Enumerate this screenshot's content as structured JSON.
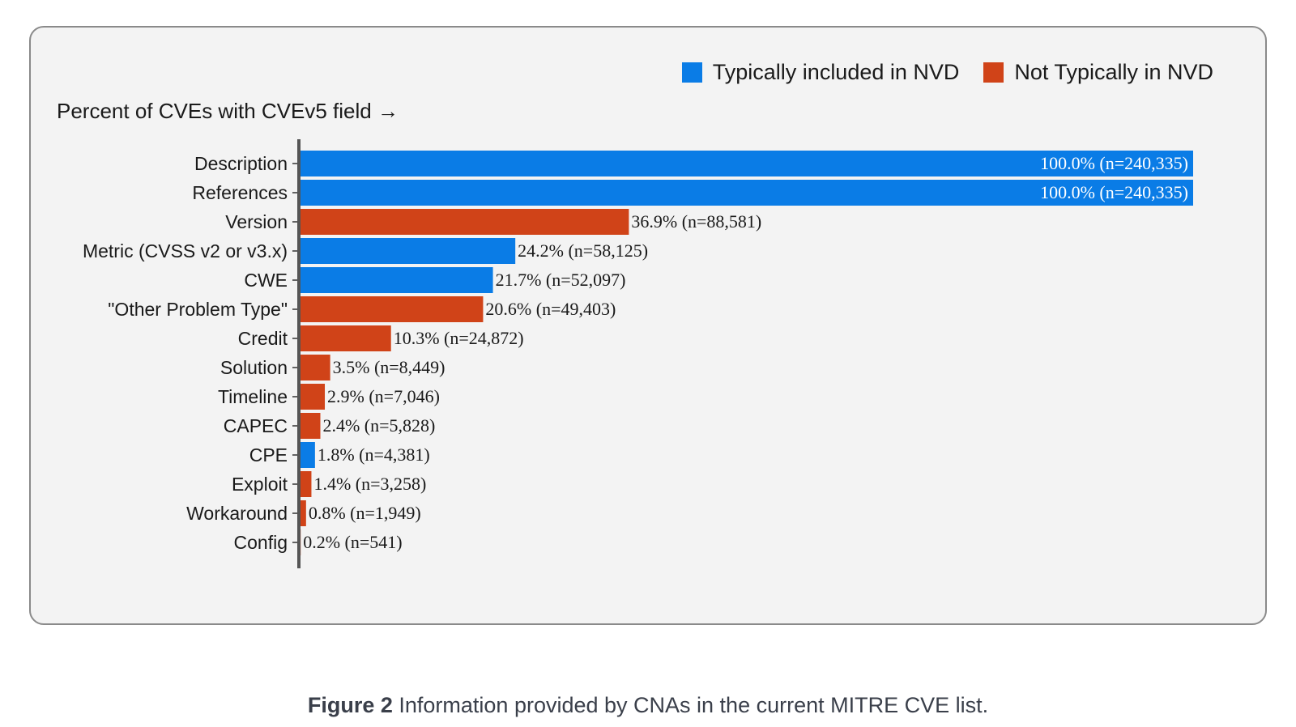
{
  "chart_data": {
    "type": "bar",
    "orientation": "horizontal",
    "title": "Percent of CVEs with CVEv5 field →",
    "xlim": [
      0,
      100
    ],
    "legend": [
      {
        "name": "Typically included in NVD",
        "color": "#0a7ce6"
      },
      {
        "name": "Not Typically in NVD",
        "color": "#d04318"
      }
    ],
    "legend_position": "top-right",
    "bars": [
      {
        "category": "Description",
        "value": 100.0,
        "n": "240,335",
        "label": "100.0% (n=240,335)",
        "group": "Typically included in NVD"
      },
      {
        "category": "References",
        "value": 100.0,
        "n": "240,335",
        "label": "100.0% (n=240,335)",
        "group": "Typically included in NVD"
      },
      {
        "category": "Version",
        "value": 36.9,
        "n": "88,581",
        "label": "36.9% (n=88,581)",
        "group": "Not Typically in NVD"
      },
      {
        "category": "Metric (CVSS v2 or v3.x)",
        "value": 24.2,
        "n": "58,125",
        "label": "24.2% (n=58,125)",
        "group": "Typically included in NVD"
      },
      {
        "category": "CWE",
        "value": 21.7,
        "n": "52,097",
        "label": "21.7% (n=52,097)",
        "group": "Typically included in NVD"
      },
      {
        "category": "\"Other Problem Type\"",
        "value": 20.6,
        "n": "49,403",
        "label": "20.6% (n=49,403)",
        "group": "Not Typically in NVD"
      },
      {
        "category": "Credit",
        "value": 10.3,
        "n": "24,872",
        "label": "10.3% (n=24,872)",
        "group": "Not Typically in NVD"
      },
      {
        "category": "Solution",
        "value": 3.5,
        "n": "8,449",
        "label": "3.5% (n=8,449)",
        "group": "Not Typically in NVD"
      },
      {
        "category": "Timeline",
        "value": 2.9,
        "n": "7,046",
        "label": "2.9% (n=7,046)",
        "group": "Not Typically in NVD"
      },
      {
        "category": "CAPEC",
        "value": 2.4,
        "n": "5,828",
        "label": "2.4% (n=5,828)",
        "group": "Not Typically in NVD"
      },
      {
        "category": "CPE",
        "value": 1.8,
        "n": "4,381",
        "label": "1.8% (n=4,381)",
        "group": "Typically included in NVD"
      },
      {
        "category": "Exploit",
        "value": 1.4,
        "n": "3,258",
        "label": "1.4% (n=3,258)",
        "group": "Not Typically in NVD"
      },
      {
        "category": "Workaround",
        "value": 0.8,
        "n": "1,949",
        "label": "0.8% (n=1,949)",
        "group": "Not Typically in NVD"
      },
      {
        "category": "Config",
        "value": 0.2,
        "n": "541",
        "label": "0.2% (n=541)",
        "group": "Not Typically in NVD"
      }
    ]
  },
  "caption": {
    "label": "Figure 2",
    "text": " Information provided by CNAs in the current MITRE CVE list."
  }
}
